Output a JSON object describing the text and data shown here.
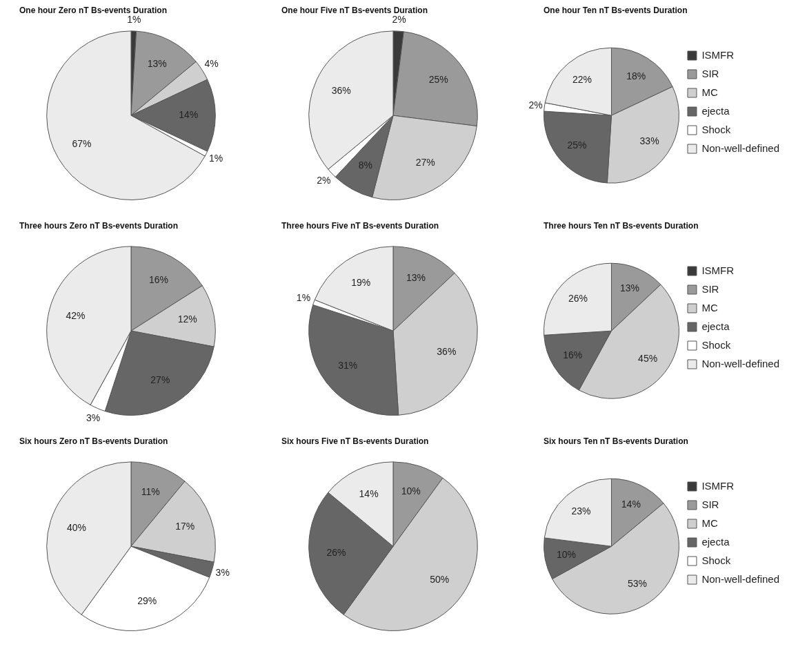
{
  "chart_data": [
    {
      "type": "pie",
      "title": "One hour Zero nT Bs-events Duration",
      "categories": [
        null,
        null,
        null,
        null,
        null,
        null
      ],
      "values": [
        1,
        13,
        4,
        14,
        1,
        67
      ],
      "colors": [
        "#3a3a3a",
        "#9a9a9a",
        "#cfcfcf",
        "#666666",
        "#ffffff",
        "#ebebeb"
      ],
      "value_labels": [
        "1%",
        "13%",
        "4%",
        "14%",
        "1%",
        "67%"
      ],
      "legend": false
    },
    {
      "type": "pie",
      "title": "One hour Five nT Bs-events Duration",
      "categories": [
        null,
        null,
        null,
        null,
        null,
        null
      ],
      "values": [
        2,
        25,
        27,
        8,
        2,
        36
      ],
      "colors": [
        "#3a3a3a",
        "#9a9a9a",
        "#cfcfcf",
        "#666666",
        "#ffffff",
        "#ebebeb"
      ],
      "value_labels": [
        "2%",
        "25%",
        "27%",
        "8%",
        "2%",
        "36%"
      ],
      "legend": false
    },
    {
      "type": "pie",
      "title": "One hour Ten nT Bs-events Duration",
      "categories": [
        "ISMFR",
        "SIR",
        "MC",
        "ejecta",
        "Shock",
        "Non-well-defined"
      ],
      "values": [
        0,
        18,
        33,
        25,
        2,
        22
      ],
      "colors": [
        "#3a3a3a",
        "#9a9a9a",
        "#cfcfcf",
        "#666666",
        "#ffffff",
        "#ebebeb"
      ],
      "value_labels": [
        null,
        "18%",
        "33%",
        "25%",
        "2%",
        "22%"
      ],
      "legend": "right"
    },
    {
      "type": "pie",
      "title": "Three hours Zero nT Bs-events Duration",
      "categories": [
        null,
        null,
        null,
        null,
        null,
        null
      ],
      "values": [
        0,
        16,
        12,
        27,
        3,
        42
      ],
      "colors": [
        "#3a3a3a",
        "#9a9a9a",
        "#cfcfcf",
        "#666666",
        "#ffffff",
        "#ebebeb"
      ],
      "value_labels": [
        null,
        "16%",
        "12%",
        "27%",
        "3%",
        "42%"
      ],
      "legend": false
    },
    {
      "type": "pie",
      "title": "Three hours Five nT Bs-events Duration",
      "categories": [
        null,
        null,
        null,
        null,
        null,
        null
      ],
      "values": [
        0,
        13,
        36,
        31,
        1,
        19
      ],
      "colors": [
        "#3a3a3a",
        "#9a9a9a",
        "#cfcfcf",
        "#666666",
        "#ffffff",
        "#ebebeb"
      ],
      "value_labels": [
        null,
        "13%",
        "36%",
        "31%",
        "1%",
        "19%"
      ],
      "legend": false
    },
    {
      "type": "pie",
      "title": "Three hours Ten nT Bs-events Duration",
      "categories": [
        "ISMFR",
        "SIR",
        "MC",
        "ejecta",
        "Shock",
        "Non-well-defined"
      ],
      "values": [
        0,
        13,
        45,
        16,
        0,
        26
      ],
      "colors": [
        "#3a3a3a",
        "#9a9a9a",
        "#cfcfcf",
        "#666666",
        "#ffffff",
        "#ebebeb"
      ],
      "value_labels": [
        null,
        "13%",
        "45%",
        "16%",
        null,
        "26%"
      ],
      "legend": "right"
    },
    {
      "type": "pie",
      "title": "Six hours Zero nT Bs-events Duration",
      "categories": [
        null,
        null,
        null,
        null,
        null,
        null
      ],
      "values": [
        0,
        11,
        17,
        3,
        29,
        40
      ],
      "colors": [
        "#3a3a3a",
        "#9a9a9a",
        "#cfcfcf",
        "#666666",
        "#ffffff",
        "#ebebeb"
      ],
      "value_labels": [
        null,
        "11%",
        "17%",
        "3%",
        "29%",
        "40%"
      ],
      "legend": false
    },
    {
      "type": "pie",
      "title": "Six hours Five nT Bs-events Duration",
      "categories": [
        null,
        null,
        null,
        null,
        null,
        null
      ],
      "values": [
        0,
        10,
        50,
        26,
        0,
        14
      ],
      "colors": [
        "#3a3a3a",
        "#9a9a9a",
        "#cfcfcf",
        "#666666",
        "#ffffff",
        "#ebebeb"
      ],
      "value_labels": [
        null,
        "10%",
        "50%",
        "26%",
        null,
        "14%"
      ],
      "legend": false
    },
    {
      "type": "pie",
      "title": "Six hours Ten nT Bs-events Duration",
      "categories": [
        "ISMFR",
        "SIR",
        "MC",
        "ejecta",
        "Shock",
        "Non-well-defined"
      ],
      "values": [
        0,
        14,
        53,
        10,
        0,
        23
      ],
      "colors": [
        "#3a3a3a",
        "#9a9a9a",
        "#cfcfcf",
        "#666666",
        "#ffffff",
        "#ebebeb"
      ],
      "value_labels": [
        null,
        "14%",
        "53%",
        "10%",
        null,
        "23%"
      ],
      "legend": "right"
    }
  ]
}
